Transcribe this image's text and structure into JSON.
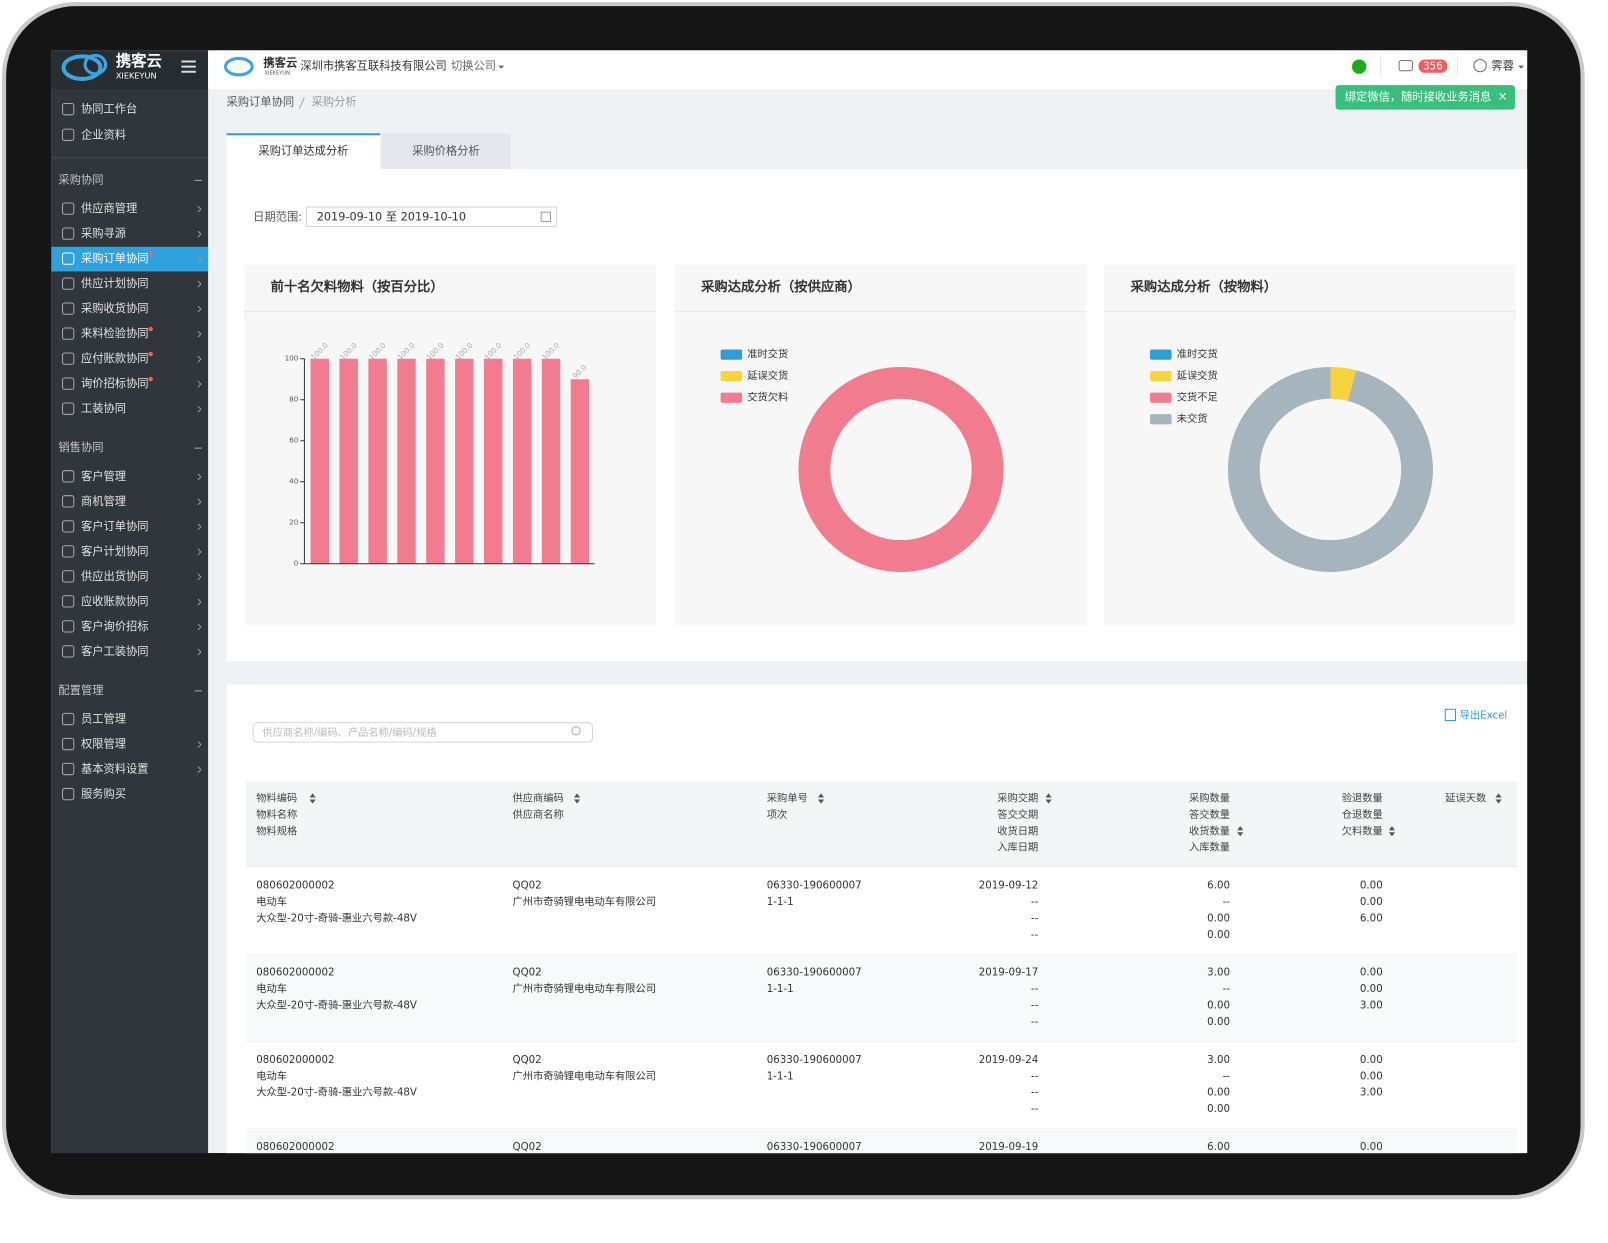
{
  "header": {
    "logo": "携客云",
    "logo_sub": "XIEKEYUN",
    "company": "深圳市携客互联科技有限公司",
    "switch": "切换公司",
    "badge": "356",
    "user": "霁蓉",
    "tooltip": "绑定微信，随时接收业务消息"
  },
  "sidebar": {
    "top": [
      "协同工作台",
      "企业资料"
    ],
    "groups": [
      {
        "title": "采购协同",
        "items": [
          "供应商管理",
          "采购寻源",
          "采购订单协同",
          "供应计划协同",
          "采购收货协同",
          "来料检验协同",
          "应付账款协同",
          "询价招标协同",
          "工装协同"
        ]
      },
      {
        "title": "销售协同",
        "items": [
          "客户管理",
          "商机管理",
          "客户订单协同",
          "客户计划协同",
          "供应出货协同",
          "应收账款协同",
          "客户询价招标",
          "客户工装协同"
        ]
      },
      {
        "title": "配置管理",
        "items": [
          "员工管理",
          "权限管理",
          "基本资料设置",
          "服务购买"
        ]
      }
    ]
  },
  "breadcrumb": [
    "采购订单协同",
    "采购分析"
  ],
  "tabs": [
    "采购订单达成分析",
    "采购价格分析"
  ],
  "filter": {
    "label": "日期范围:",
    "value": "2019-09-10 至 2019-10-10"
  },
  "chart_data": [
    {
      "type": "bar",
      "title": "前十名欠料物料（按百分比）",
      "categories": [
        null,
        null,
        null,
        null,
        null,
        null,
        null,
        null,
        null,
        null
      ],
      "values": [
        100,
        100,
        100,
        100,
        100,
        100,
        100,
        100,
        100,
        90
      ],
      "value_labels": [
        "100.0",
        "100.0",
        "100.0",
        "100.0",
        "100.0",
        "100.0",
        "100.0",
        "100.0",
        "100.0",
        "90.0"
      ],
      "color": "#f27c8f",
      "ylim": [
        0,
        100
      ],
      "yticks": [
        0,
        20,
        40,
        60,
        80,
        100
      ],
      "grid": false
    },
    {
      "type": "pie",
      "title": "采购达成分析（按供应商）",
      "categories": [
        "准时交货",
        "延误交货",
        "交货欠料"
      ],
      "values": [
        0,
        0,
        100
      ],
      "colors": [
        "#2ba0d8",
        "#f7d33c",
        "#f27c8f"
      ]
    },
    {
      "type": "pie",
      "title": "采购达成分析（按物料）",
      "categories": [
        "准时交货",
        "延误交货",
        "交货不足",
        "未交货"
      ],
      "values": [
        0,
        4,
        0,
        96
      ],
      "colors": [
        "#2ba0d8",
        "#f7d33c",
        "#f27c8f",
        "#a5b4bd"
      ]
    }
  ],
  "table": {
    "search_placeholder": "供应商名称/编码、产品名称/编码/规格",
    "export": "导出Excel",
    "headers": [
      [
        "物料编码",
        "物料名称",
        "物料规格"
      ],
      [
        "供应商编码",
        "供应商名称"
      ],
      [
        "采购单号",
        "项次"
      ],
      [
        "采购交期",
        "答交交期",
        "收货日期",
        "入库日期"
      ],
      [
        "采购数量",
        "答交数量",
        "收货数量",
        "入库数量"
      ],
      [
        "验退数量",
        "仓退数量",
        "欠料数量"
      ],
      [
        "延误天数"
      ]
    ],
    "rows": [
      [
        [
          "080602000002",
          "电动车",
          "大众型-20寸-奇骑-惠业六号款-48V"
        ],
        [
          "QQ02",
          "广州市奇骑锂电电动车有限公司"
        ],
        [
          "06330-190600007",
          "1-1-1"
        ],
        [
          "2019-09-12",
          "--",
          "--",
          "--"
        ],
        [
          "6.00",
          "--",
          "0.00",
          "0.00"
        ],
        [
          "0.00",
          "0.00",
          "6.00"
        ],
        []
      ],
      [
        [
          "080602000002",
          "电动车",
          "大众型-20寸-奇骑-惠业六号款-48V"
        ],
        [
          "QQ02",
          "广州市奇骑锂电电动车有限公司"
        ],
        [
          "06330-190600007",
          "1-1-1"
        ],
        [
          "2019-09-17",
          "--",
          "--",
          "--"
        ],
        [
          "3.00",
          "--",
          "0.00",
          "0.00"
        ],
        [
          "0.00",
          "0.00",
          "3.00"
        ],
        []
      ],
      [
        [
          "080602000002",
          "电动车",
          "大众型-20寸-奇骑-惠业六号款-48V"
        ],
        [
          "QQ02",
          "广州市奇骑锂电电动车有限公司"
        ],
        [
          "06330-190600007",
          "1-1-1"
        ],
        [
          "2019-09-24",
          "--",
          "--",
          "--"
        ],
        [
          "3.00",
          "--",
          "0.00",
          "0.00"
        ],
        [
          "0.00",
          "0.00",
          "3.00"
        ],
        []
      ],
      [
        [
          "080602000002"
        ],
        [
          "QQ02"
        ],
        [
          "06330-190600007"
        ],
        [
          "2019-09-19"
        ],
        [
          "6.00"
        ],
        [
          "0.00"
        ],
        []
      ]
    ]
  }
}
